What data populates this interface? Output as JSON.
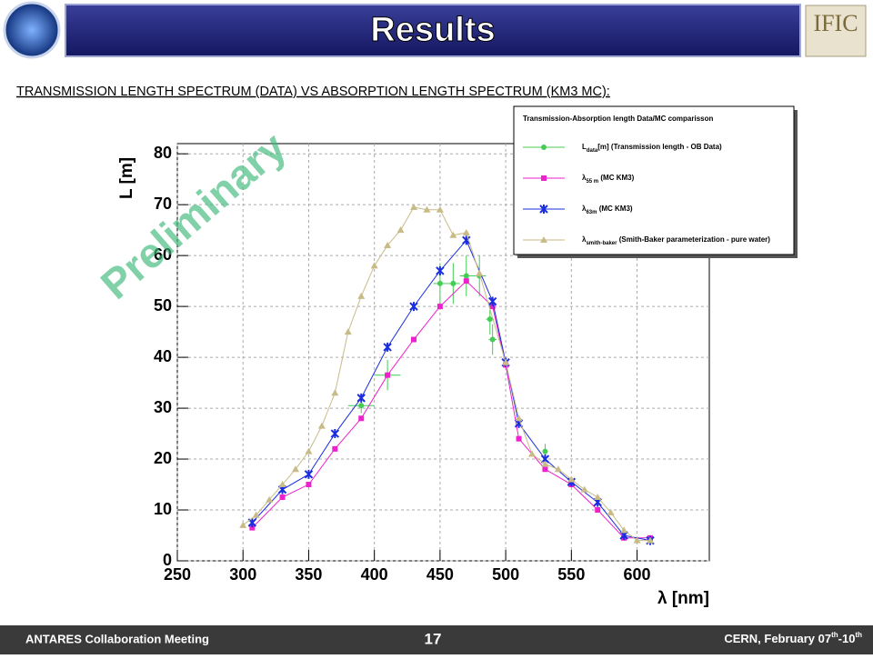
{
  "header": {
    "title": "Results",
    "logo_right": "IFIC"
  },
  "subtitle": "TRANSMISSION LENGTH SPECTRUM (DATA) VS ABSORPTION LENGTH SPECTRUM (KM3 MC):",
  "watermark": "Preliminary",
  "chart_data": {
    "type": "line",
    "legend_title": "Transmission-Absorption length Data/MC comparisson",
    "x_label": "λ [nm]",
    "y_label": "L [m]",
    "xlim": [
      250,
      655
    ],
    "ylim": [
      0,
      82
    ],
    "xticks": [
      250,
      300,
      350,
      400,
      450,
      500,
      550,
      600
    ],
    "yticks": [
      0,
      10,
      20,
      30,
      40,
      50,
      60,
      70,
      80
    ],
    "grid": true,
    "legend_position": "top-right",
    "series": [
      {
        "name": {
          "main": "L",
          "sub": "data",
          "rest": "[m] (Transmission length - OB Data)"
        },
        "color": "#44cc55",
        "marker": "circle",
        "line": false,
        "x": [
          390,
          410,
          450,
          460,
          470,
          480,
          488,
          490,
          530
        ],
        "values": [
          30.5,
          36.5,
          54.5,
          54.5,
          56,
          56,
          47.5,
          43.5,
          21.5
        ],
        "y_errors": [
          1.5,
          3,
          4,
          4,
          4,
          4,
          3,
          3,
          1.5
        ],
        "x_errors": [
          10,
          10,
          5,
          5,
          5,
          5,
          3,
          3,
          2
        ]
      },
      {
        "name": {
          "main": "λ",
          "sub": "55 m",
          "rest": " (MC KM3)"
        },
        "color": "#ee22cc",
        "marker": "square",
        "line": true,
        "x": [
          307,
          330,
          350,
          370,
          390,
          410,
          430,
          450,
          470,
          490,
          500,
          510,
          530,
          550,
          570,
          590,
          610
        ],
        "values": [
          6.5,
          12.5,
          15,
          22,
          28,
          36.5,
          43.5,
          50,
          55,
          50,
          38.5,
          24,
          18,
          15,
          10,
          4.5,
          4.5
        ]
      },
      {
        "name": {
          "main": "λ",
          "sub": "63m",
          "rest": " (MC KM3)"
        },
        "color": "#1a2ee0",
        "marker": "star",
        "line": true,
        "x": [
          307,
          330,
          350,
          370,
          390,
          410,
          430,
          450,
          470,
          490,
          500,
          510,
          530,
          550,
          570,
          590,
          610
        ],
        "values": [
          7.5,
          14,
          17,
          25,
          32,
          42,
          50,
          57,
          63,
          51,
          39,
          27,
          20,
          15.5,
          11.5,
          5,
          4
        ]
      },
      {
        "name": {
          "main": "λ",
          "sub": "smith-baker",
          "rest": " (Smith-Baker parameterization - pure water)"
        },
        "color": "#c8bb88",
        "marker": "triangle",
        "line": true,
        "x": [
          300,
          310,
          320,
          330,
          340,
          350,
          360,
          370,
          380,
          390,
          400,
          410,
          420,
          430,
          440,
          450,
          460,
          470,
          480,
          500,
          510,
          520,
          530,
          540,
          550,
          560,
          570,
          580,
          590,
          600,
          610
        ],
        "values": [
          7,
          9,
          12,
          15,
          18,
          21.5,
          26.5,
          33,
          45,
          52,
          58,
          62,
          65,
          69.5,
          69,
          69,
          64,
          64.5,
          56.5,
          39,
          28,
          21,
          19,
          18,
          16,
          14,
          12.5,
          9.5,
          6,
          4,
          4
        ]
      }
    ]
  },
  "footer": {
    "left": "ANTARES Collaboration Meeting",
    "page": "17",
    "right": {
      "a": "CERN, February 07",
      "b": "th",
      "c": "-10",
      "d": "th"
    }
  }
}
